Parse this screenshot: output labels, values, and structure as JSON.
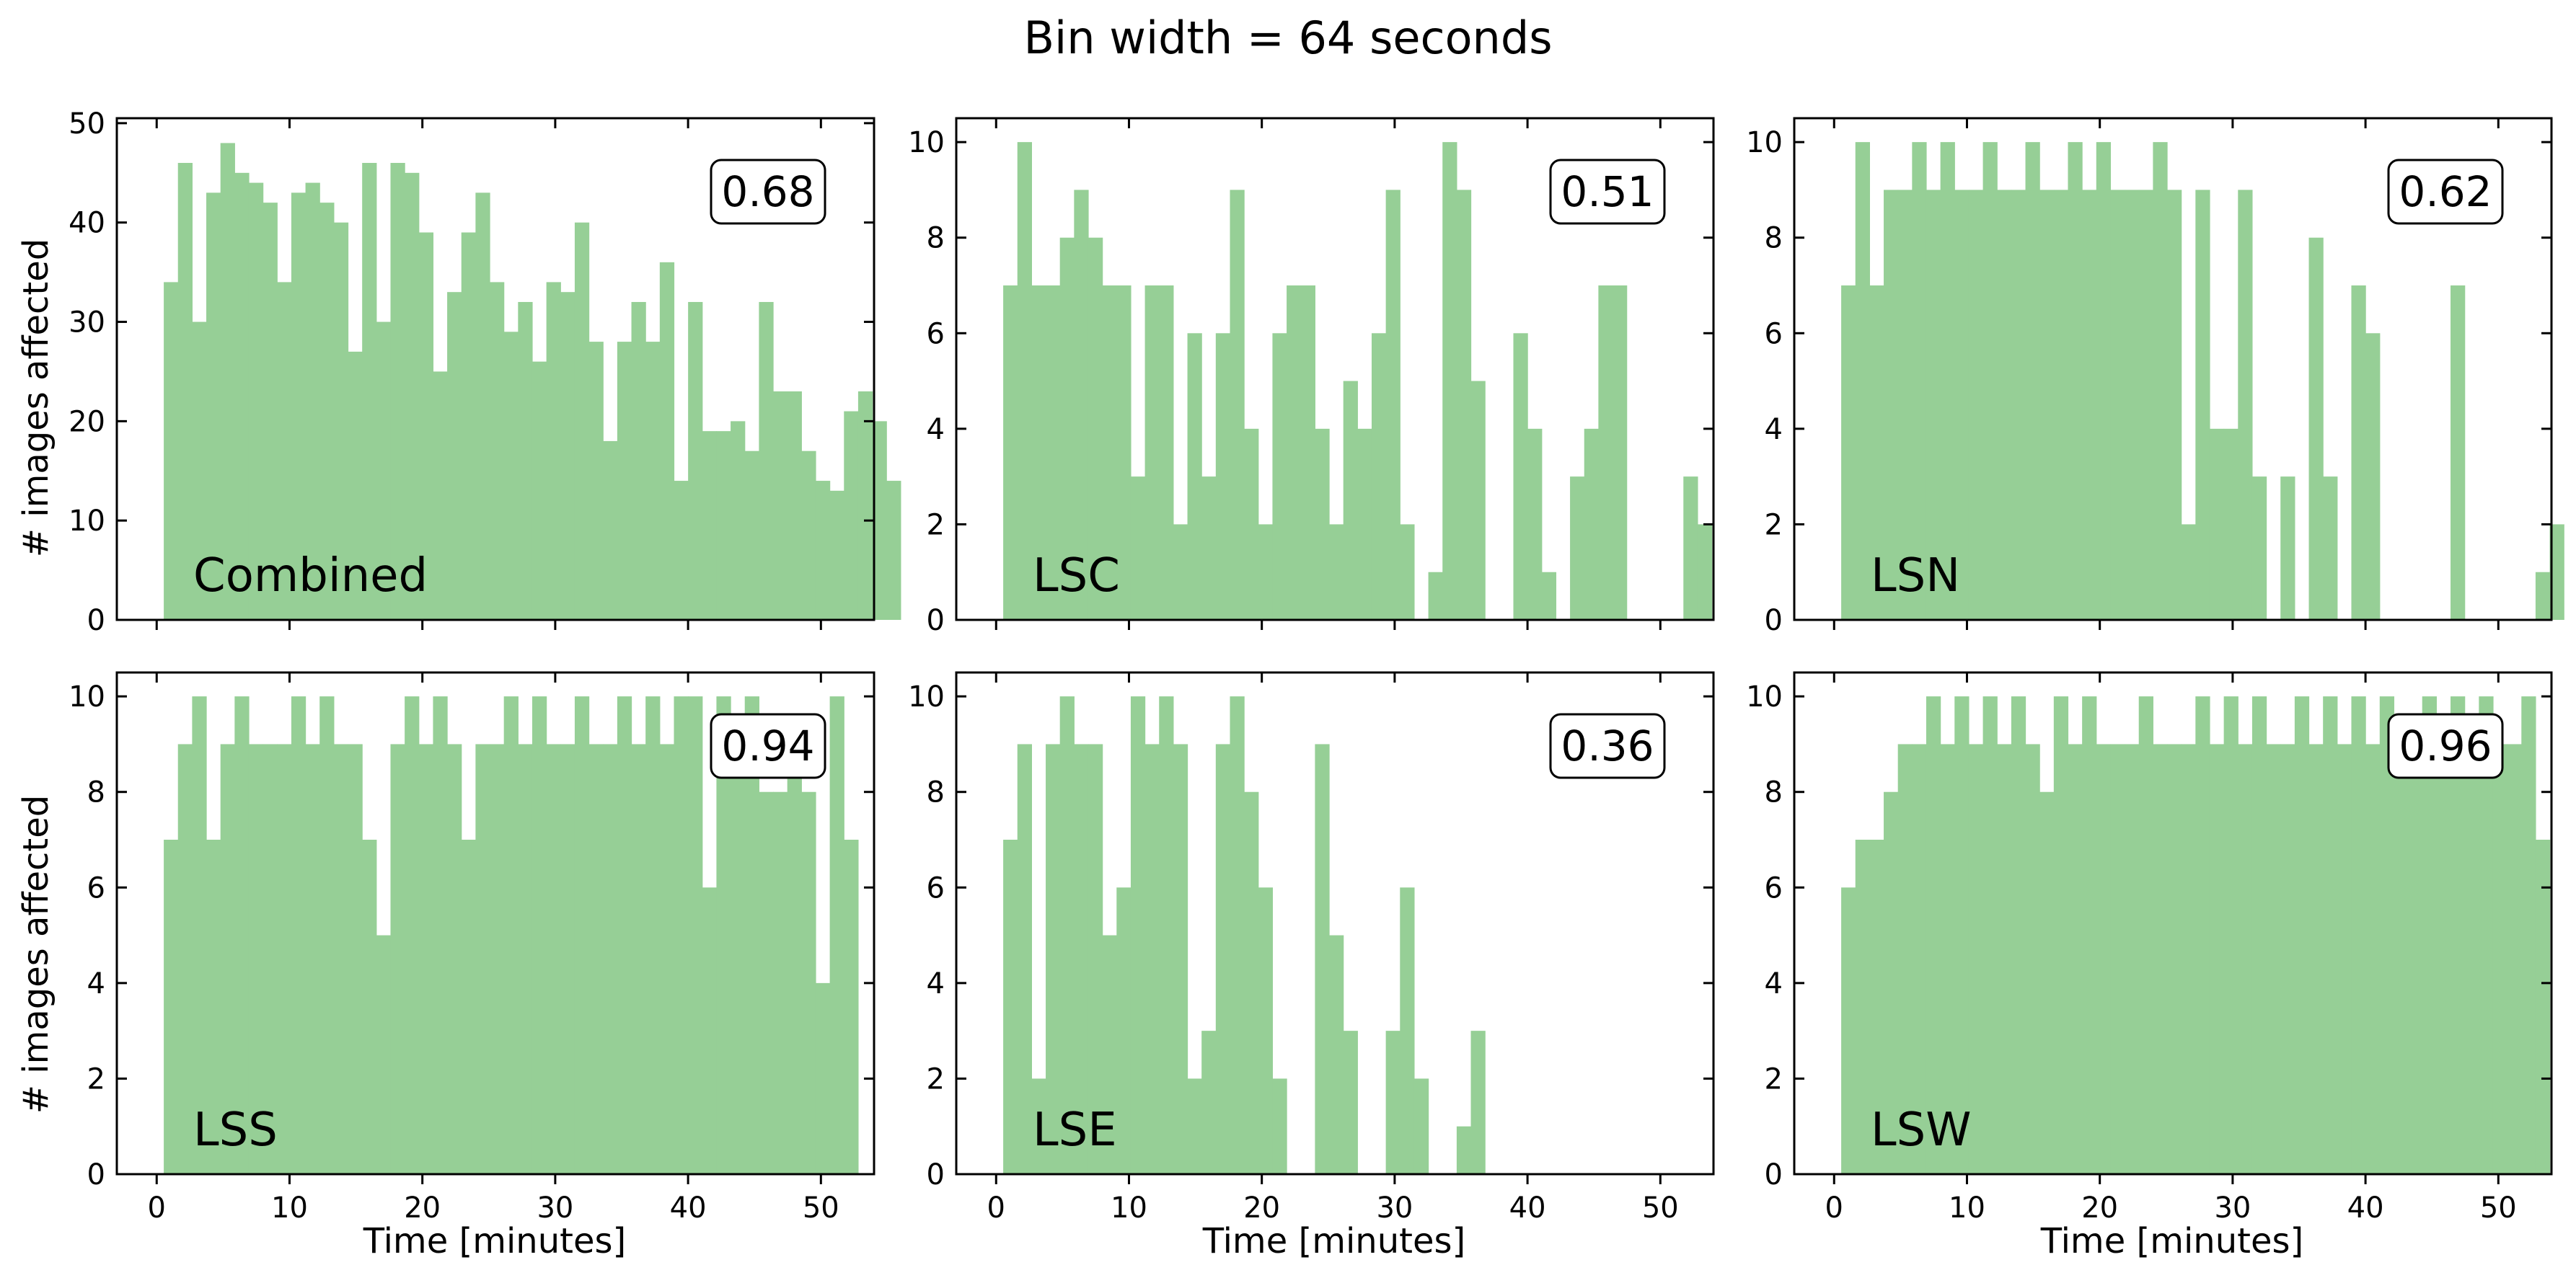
{
  "figure": {
    "suptitle": "Bin width = 64 seconds",
    "shared_xlabel": "Time [minutes]",
    "shared_ylabel": "# images affected",
    "bar_color": "#96cf96",
    "bin_width_minutes": 1.0667
  },
  "chart_data": [
    {
      "type": "bar",
      "panel_label": "Combined",
      "score": "0.68",
      "xlim": [
        -3,
        54
      ],
      "ylim": [
        0,
        50.5
      ],
      "xticks": [
        0,
        10,
        20,
        30,
        40,
        50
      ],
      "yticks": [
        0,
        10,
        20,
        30,
        40,
        50
      ],
      "x_start": 0.5333,
      "values": [
        34,
        46,
        30,
        43,
        48,
        45,
        44,
        42,
        34,
        43,
        44,
        42,
        40,
        27,
        46,
        30,
        46,
        45,
        39,
        25,
        33,
        39,
        43,
        34,
        29,
        32,
        26,
        34,
        33,
        40,
        28,
        18,
        28,
        32,
        28,
        36,
        14,
        32,
        19,
        19,
        20,
        17,
        32,
        23,
        23,
        17,
        14,
        13,
        21,
        23,
        20,
        14
      ]
    },
    {
      "type": "bar",
      "panel_label": "LSC",
      "score": "0.51",
      "xlim": [
        -3,
        54
      ],
      "ylim": [
        0,
        10.5
      ],
      "xticks": [
        0,
        10,
        20,
        30,
        40,
        50
      ],
      "yticks": [
        0,
        2,
        4,
        6,
        8,
        10
      ],
      "x_start": 0.5333,
      "values": [
        7,
        10,
        7,
        7,
        8,
        9,
        8,
        7,
        7,
        3,
        7,
        7,
        2,
        6,
        3,
        6,
        9,
        4,
        2,
        6,
        7,
        7,
        4,
        2,
        5,
        4,
        6,
        9,
        2,
        0,
        1,
        10,
        9,
        5,
        0,
        0,
        6,
        4,
        1,
        0,
        3,
        4,
        7,
        7,
        0,
        0,
        0,
        0,
        3,
        2
      ]
    },
    {
      "type": "bar",
      "panel_label": "LSN",
      "score": "0.62",
      "xlim": [
        -3,
        54
      ],
      "ylim": [
        0,
        10.5
      ],
      "xticks": [
        0,
        10,
        20,
        30,
        40,
        50
      ],
      "yticks": [
        0,
        2,
        4,
        6,
        8,
        10
      ],
      "x_start": 0.5333,
      "values": [
        7,
        10,
        7,
        9,
        9,
        10,
        9,
        10,
        9,
        9,
        10,
        9,
        9,
        10,
        9,
        9,
        10,
        9,
        10,
        9,
        9,
        9,
        10,
        9,
        2,
        9,
        4,
        4,
        9,
        3,
        0,
        3,
        0,
        8,
        3,
        0,
        7,
        6,
        0,
        0,
        0,
        0,
        0,
        7,
        0,
        0,
        0,
        0,
        0,
        1,
        2
      ]
    },
    {
      "type": "bar",
      "panel_label": "LSS",
      "score": "0.94",
      "xlim": [
        -3,
        54
      ],
      "ylim": [
        0,
        10.5
      ],
      "xticks": [
        0,
        10,
        20,
        30,
        40,
        50
      ],
      "yticks": [
        0,
        2,
        4,
        6,
        8,
        10
      ],
      "x_start": 0.5333,
      "values": [
        7,
        9,
        10,
        7,
        9,
        10,
        9,
        9,
        9,
        10,
        9,
        10,
        9,
        9,
        7,
        5,
        9,
        10,
        9,
        10,
        9,
        7,
        9,
        9,
        10,
        9,
        10,
        9,
        9,
        10,
        9,
        9,
        10,
        9,
        10,
        9,
        10,
        10,
        6,
        10,
        9,
        10,
        8,
        8,
        9,
        8,
        4,
        10,
        7
      ]
    },
    {
      "type": "bar",
      "panel_label": "LSE",
      "score": "0.36",
      "xlim": [
        -3,
        54
      ],
      "ylim": [
        0,
        10.5
      ],
      "xticks": [
        0,
        10,
        20,
        30,
        40,
        50
      ],
      "yticks": [
        0,
        2,
        4,
        6,
        8,
        10
      ],
      "x_start": 0.5333,
      "values": [
        7,
        9,
        2,
        9,
        10,
        9,
        9,
        5,
        6,
        10,
        9,
        10,
        9,
        2,
        3,
        9,
        10,
        8,
        6,
        2,
        0,
        0,
        9,
        5,
        3,
        0,
        0,
        3,
        6,
        2,
        0,
        0,
        1,
        3
      ]
    },
    {
      "type": "bar",
      "panel_label": "LSW",
      "score": "0.96",
      "xlim": [
        -3,
        54
      ],
      "ylim": [
        0,
        10.5
      ],
      "xticks": [
        0,
        10,
        20,
        30,
        40,
        50
      ],
      "yticks": [
        0,
        2,
        4,
        6,
        8,
        10
      ],
      "x_start": 0.5333,
      "values": [
        6,
        7,
        7,
        8,
        9,
        9,
        10,
        9,
        10,
        9,
        10,
        9,
        10,
        9,
        8,
        10,
        9,
        10,
        9,
        9,
        9,
        10,
        9,
        9,
        9,
        10,
        9,
        10,
        9,
        10,
        9,
        9,
        10,
        9,
        10,
        9,
        10,
        9,
        10,
        9,
        9,
        10,
        9,
        10,
        9,
        10,
        9,
        9,
        10,
        7
      ]
    }
  ]
}
